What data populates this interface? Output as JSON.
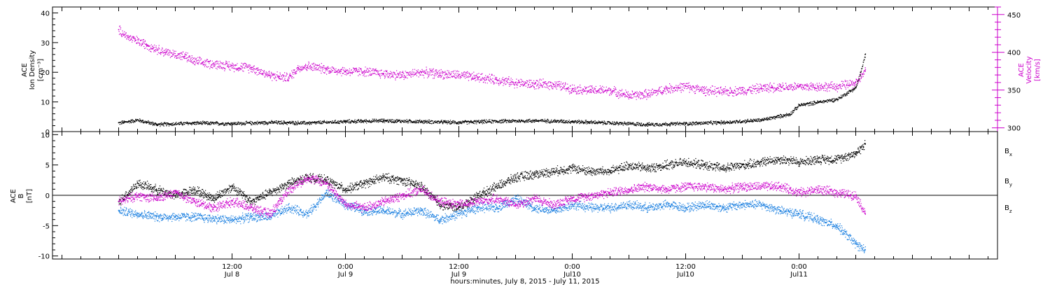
{
  "chart_data": [
    {
      "type": "scatter",
      "panel": "top",
      "ylabel_left": [
        "ACE",
        "Ion Density",
        "[cm⁻³]"
      ],
      "ylabel_right": [
        "ACE",
        "Velocity",
        "[km/s]"
      ],
      "ylim_left": [
        0,
        42
      ],
      "ylim_right": [
        295,
        460
      ],
      "yticks_left": [
        "0",
        "10",
        "20",
        "30",
        "40"
      ],
      "yticks_right": [
        "300",
        "350",
        "400",
        "450"
      ],
      "series": [
        {
          "key": "density",
          "axis": "left",
          "color": "#000000",
          "points": [
            [
              0,
              3
            ],
            [
              2,
              4
            ],
            [
              4,
              2.5
            ],
            [
              8,
              3
            ],
            [
              12,
              2.8
            ],
            [
              16,
              3.2
            ],
            [
              20,
              3
            ],
            [
              24,
              3.5
            ],
            [
              28,
              3.8
            ],
            [
              32,
              3.5
            ],
            [
              36,
              3.2
            ],
            [
              40,
              3.6
            ],
            [
              44,
              3.8
            ],
            [
              48,
              3.5
            ],
            [
              52,
              3
            ],
            [
              56,
              2.5
            ],
            [
              60,
              2.8
            ],
            [
              64,
              3.2
            ],
            [
              68,
              4
            ],
            [
              71,
              6
            ],
            [
              72,
              9
            ],
            [
              74,
              10
            ],
            [
              76,
              11
            ],
            [
              78,
              15
            ],
            [
              78.5,
              20
            ],
            [
              79,
              26
            ]
          ]
        },
        {
          "key": "velocity",
          "axis": "right",
          "color": "#cc00cc",
          "points": [
            [
              0,
              430
            ],
            [
              1,
              420
            ],
            [
              3,
              410
            ],
            [
              5,
              400
            ],
            [
              7,
              395
            ],
            [
              8,
              388
            ],
            [
              10,
              385
            ],
            [
              12,
              382
            ],
            [
              14,
              380
            ],
            [
              16,
              370
            ],
            [
              17,
              368
            ],
            [
              18,
              367
            ],
            [
              19,
              380
            ],
            [
              20,
              382
            ],
            [
              22,
              378
            ],
            [
              24,
              375
            ],
            [
              26,
              375
            ],
            [
              28,
              372
            ],
            [
              30,
              370
            ],
            [
              32,
              374
            ],
            [
              34,
              372
            ],
            [
              36,
              370
            ],
            [
              38,
              367
            ],
            [
              40,
              364
            ],
            [
              42,
              360
            ],
            [
              44,
              358
            ],
            [
              46,
              358
            ],
            [
              48,
              352
            ],
            [
              50,
              350
            ],
            [
              52,
              350
            ],
            [
              54,
              343
            ],
            [
              56,
              345
            ],
            [
              58,
              352
            ],
            [
              60,
              355
            ],
            [
              62,
              350
            ],
            [
              64,
              348
            ],
            [
              66,
              350
            ],
            [
              68,
              353
            ],
            [
              70,
              355
            ],
            [
              72,
              355
            ],
            [
              74,
              355
            ],
            [
              76,
              355
            ],
            [
              78,
              360
            ],
            [
              79,
              375
            ]
          ]
        }
      ]
    },
    {
      "type": "scatter",
      "panel": "bottom",
      "ylabel_left": [
        "ACE",
        "B",
        "[nT]"
      ],
      "ylim": [
        -10.5,
        10.5
      ],
      "yticks": [
        "-10",
        "-5",
        "0",
        "5",
        "10"
      ],
      "series": [
        {
          "key": "bx",
          "label": "B",
          "sub": "x",
          "color": "#000000",
          "points": [
            [
              0,
              -1
            ],
            [
              2,
              2
            ],
            [
              4,
              1
            ],
            [
              6,
              0
            ],
            [
              8,
              1
            ],
            [
              10,
              -0.5
            ],
            [
              12,
              1.5
            ],
            [
              14,
              -1
            ],
            [
              16,
              0.5
            ],
            [
              18,
              2
            ],
            [
              20,
              3
            ],
            [
              22,
              2.5
            ],
            [
              24,
              1
            ],
            [
              26,
              2
            ],
            [
              28,
              3
            ],
            [
              30,
              2.5
            ],
            [
              32,
              1.5
            ],
            [
              34,
              -1.5
            ],
            [
              36,
              -2
            ],
            [
              38,
              0
            ],
            [
              40,
              1.5
            ],
            [
              42,
              3
            ],
            [
              44,
              3.5
            ],
            [
              46,
              4
            ],
            [
              48,
              4.5
            ],
            [
              50,
              4
            ],
            [
              52,
              4
            ],
            [
              54,
              5
            ],
            [
              56,
              4.5
            ],
            [
              58,
              5
            ],
            [
              60,
              5.5
            ],
            [
              62,
              5
            ],
            [
              64,
              4.5
            ],
            [
              66,
              5
            ],
            [
              68,
              5.5
            ],
            [
              70,
              6
            ],
            [
              72,
              5.5
            ],
            [
              74,
              6
            ],
            [
              76,
              6
            ],
            [
              78,
              7
            ],
            [
              79,
              8.5
            ]
          ]
        },
        {
          "key": "by",
          "label": "B",
          "sub": "y",
          "color": "#1a7fe0",
          "points": [
            [
              0,
              -2.5
            ],
            [
              2,
              -3
            ],
            [
              4,
              -3.5
            ],
            [
              6,
              -3.5
            ],
            [
              8,
              -3.5
            ],
            [
              10,
              -3.8
            ],
            [
              12,
              -4
            ],
            [
              14,
              -3.5
            ],
            [
              16,
              -3.5
            ],
            [
              18,
              -2
            ],
            [
              20,
              -3
            ],
            [
              22,
              0.5
            ],
            [
              24,
              -1.5
            ],
            [
              26,
              -2.5
            ],
            [
              28,
              -2.5
            ],
            [
              30,
              -3
            ],
            [
              32,
              -2.5
            ],
            [
              34,
              -4
            ],
            [
              36,
              -3
            ],
            [
              38,
              -2
            ],
            [
              40,
              -2
            ],
            [
              42,
              -0.5
            ],
            [
              44,
              -2
            ],
            [
              46,
              -2.5
            ],
            [
              48,
              -1.5
            ],
            [
              50,
              -2
            ],
            [
              52,
              -2
            ],
            [
              54,
              -1.5
            ],
            [
              56,
              -2
            ],
            [
              58,
              -1.5
            ],
            [
              60,
              -2
            ],
            [
              62,
              -1.5
            ],
            [
              64,
              -2
            ],
            [
              66,
              -1.5
            ],
            [
              68,
              -1.5
            ],
            [
              70,
              -2.5
            ],
            [
              72,
              -3
            ],
            [
              74,
              -4
            ],
            [
              76,
              -5
            ],
            [
              78,
              -8
            ],
            [
              79,
              -9
            ]
          ]
        },
        {
          "key": "bz",
          "label": "B",
          "sub": "z",
          "color": "#cc00cc",
          "points": [
            [
              0,
              -1
            ],
            [
              2,
              0
            ],
            [
              4,
              -0.5
            ],
            [
              6,
              0.5
            ],
            [
              8,
              -1
            ],
            [
              10,
              -2
            ],
            [
              12,
              -1
            ],
            [
              14,
              -2
            ],
            [
              16,
              -3
            ],
            [
              18,
              1
            ],
            [
              20,
              3
            ],
            [
              22,
              2
            ],
            [
              24,
              -1.5
            ],
            [
              26,
              -2
            ],
            [
              28,
              -1
            ],
            [
              30,
              0
            ],
            [
              32,
              1
            ],
            [
              34,
              -1
            ],
            [
              36,
              -1.5
            ],
            [
              38,
              -1
            ],
            [
              40,
              -0.5
            ],
            [
              42,
              -1.5
            ],
            [
              44,
              -0.5
            ],
            [
              46,
              -1.5
            ],
            [
              48,
              -0.5
            ],
            [
              50,
              0
            ],
            [
              52,
              0.5
            ],
            [
              54,
              1
            ],
            [
              56,
              1.5
            ],
            [
              58,
              1
            ],
            [
              60,
              1.5
            ],
            [
              62,
              1.5
            ],
            [
              64,
              1
            ],
            [
              66,
              1.5
            ],
            [
              68,
              1.5
            ],
            [
              70,
              1.5
            ],
            [
              72,
              0.5
            ],
            [
              74,
              1
            ],
            [
              76,
              0.5
            ],
            [
              78,
              0
            ],
            [
              79,
              -3
            ]
          ]
        }
      ]
    }
  ],
  "x_axis": {
    "range_hours": [
      -7,
      93
    ],
    "major_ticks": [
      {
        "h": 12,
        "line1": "12:00",
        "line2": "Jul 8"
      },
      {
        "h": 24,
        "line1": "0:00",
        "line2": "Jul 9"
      },
      {
        "h": 36,
        "line1": "12:00",
        "line2": "Jul 9"
      },
      {
        "h": 48,
        "line1": "0:00",
        "line2": "Jul10"
      },
      {
        "h": 60,
        "line1": "12:00",
        "line2": "Jul10"
      },
      {
        "h": 72,
        "line1": "0:00",
        "line2": "Jul11"
      }
    ],
    "title": "hours:minutes,  July  8, 2015 - July 11, 2015"
  }
}
